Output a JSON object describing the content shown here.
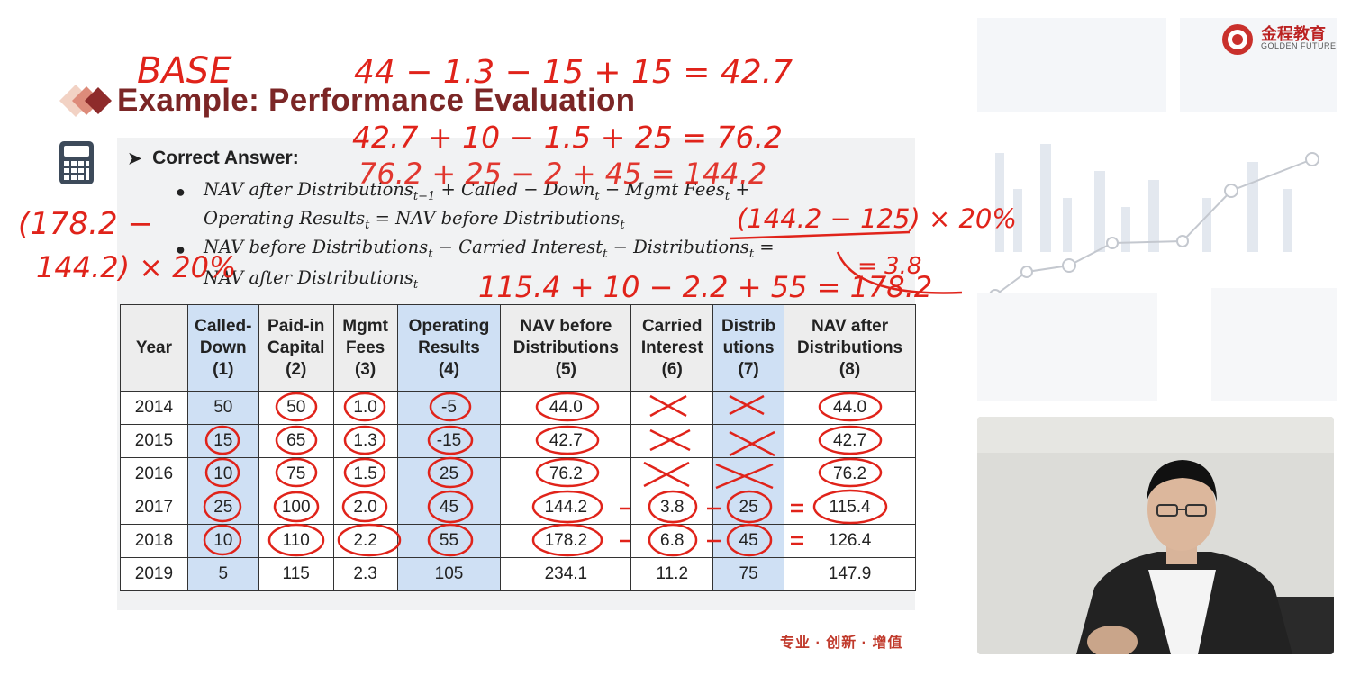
{
  "slide": {
    "title": "Example: Performance Evaluation",
    "answer_heading": "Correct Answer:",
    "formula1_line1": "NAV after Distributions",
    "formula1_sub1": "t−1",
    "formula1_rest1": " + Called − Down",
    "formula1_sub2": "t",
    "formula1_rest2": " − Mgmt Fees",
    "formula1_sub3": "t",
    "formula1_rest3": " +",
    "formula1_line2": "Operating Results",
    "formula1_sub4": "t",
    "formula1_rest4": " = NAV before Distributions",
    "formula1_sub5": "t",
    "formula2_line1": "NAV before Distributions",
    "formula2_sub1": "t",
    "formula2_rest1": " − Carried Interest",
    "formula2_sub2": "t",
    "formula2_rest2": " − Distributions",
    "formula2_sub3": "t",
    "formula2_rest3": " =",
    "formula2_line2": "NAV after Distributions",
    "formula2_sub4": "t",
    "slogan": "专业 · 创新 · 增值"
  },
  "table": {
    "headers": [
      {
        "line1": "Year",
        "line2": "",
        "line3": ""
      },
      {
        "line1": "Called-",
        "line2": "Down",
        "line3": "(1)"
      },
      {
        "line1": "Paid-in",
        "line2": "Capital",
        "line3": "(2)"
      },
      {
        "line1": "Mgmt",
        "line2": "Fees",
        "line3": "(3)"
      },
      {
        "line1": "Operating",
        "line2": "Results",
        "line3": "(4)"
      },
      {
        "line1": "NAV before",
        "line2": "Distributions",
        "line3": "(5)"
      },
      {
        "line1": "Carried",
        "line2": "Interest",
        "line3": "(6)"
      },
      {
        "line1": "Distrib",
        "line2": "utions",
        "line3": "(7)"
      },
      {
        "line1": "NAV after",
        "line2": "Distributions",
        "line3": "(8)"
      }
    ],
    "rows": [
      [
        "2014",
        "50",
        "50",
        "1.0",
        "-5",
        "44.0",
        "",
        "",
        "44.0"
      ],
      [
        "2015",
        "15",
        "65",
        "1.3",
        "-15",
        "42.7",
        "",
        "",
        "42.7"
      ],
      [
        "2016",
        "10",
        "75",
        "1.5",
        "25",
        "76.2",
        "",
        "",
        "76.2"
      ],
      [
        "2017",
        "25",
        "100",
        "2.0",
        "45",
        "144.2",
        "3.8",
        "25",
        "115.4"
      ],
      [
        "2018",
        "10",
        "110",
        "2.2",
        "55",
        "178.2",
        "6.8",
        "45",
        "126.4"
      ],
      [
        "2019",
        "5",
        "115",
        "2.3",
        "105",
        "234.1",
        "11.2",
        "75",
        "147.9"
      ]
    ]
  },
  "logo": {
    "chinese": "金程教育",
    "english": "GOLDEN FUTURE"
  },
  "annotations": {
    "base": "BASE",
    "calc1": "44 − 1.3 − 15 + 15 = 42.7",
    "calc2": "42.7 + 10 − 1.5 + 25 = 76.2",
    "calc3": "76.2 + 25 − 2 + 45 = 144.2",
    "calc4": "(144.2 − 125) × 20%",
    "calc5": "= 3.8",
    "calc6": "115.4 + 10 − 2.2 + 55 = 178.2",
    "side1": "(178.2 −",
    "side2": "144.2) × 20%",
    "eq_marks": "="
  },
  "colors": {
    "title": "#7b2626",
    "ink": "#e0231a",
    "highlight_column": "#cfe0f4"
  }
}
